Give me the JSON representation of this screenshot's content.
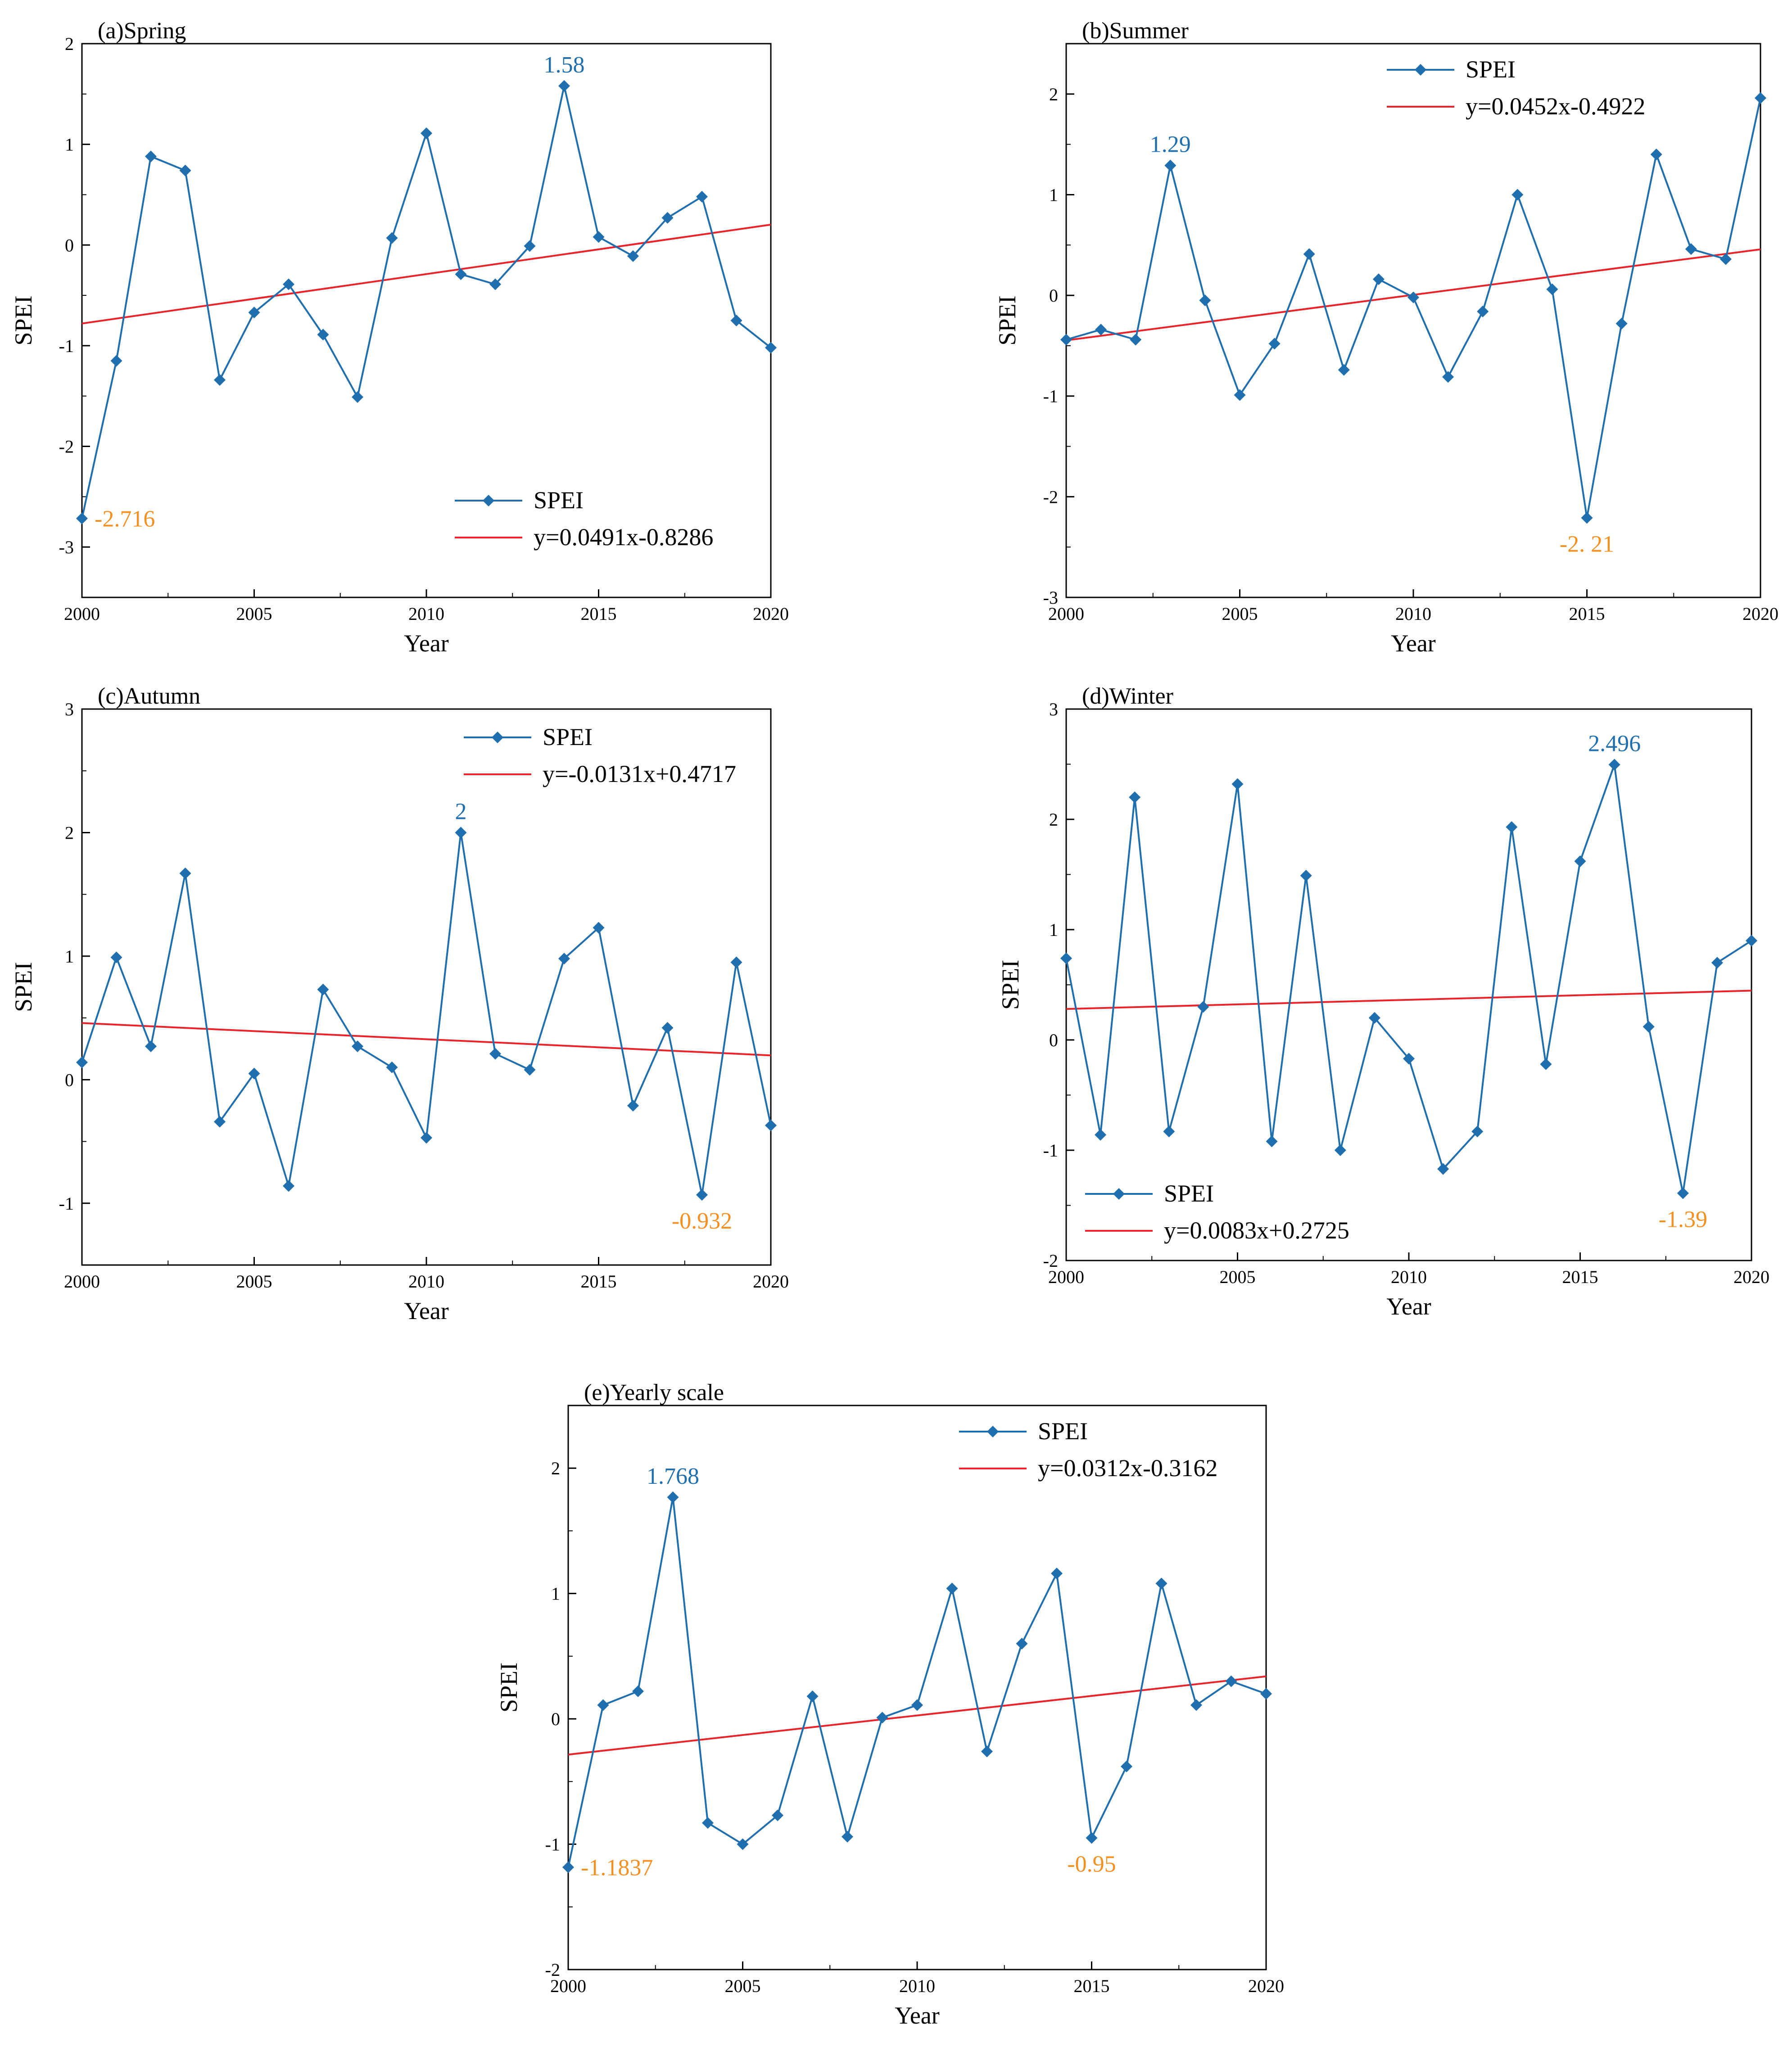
{
  "chart_data": [
    {
      "type": "line",
      "title": "(a)Spring",
      "xlabel": "Year",
      "ylabel": "SPEI",
      "xlim": [
        2000,
        2020
      ],
      "ylim": [
        -3.5,
        2
      ],
      "xticks": [
        2000,
        2005,
        2010,
        2015,
        2020
      ],
      "yticks": [
        -3,
        -2,
        -1,
        0,
        1,
        2
      ],
      "legend_position": "bottom-right",
      "series": [
        {
          "name": "SPEI",
          "color": "#1F6EAD",
          "x": [
            2000,
            2001,
            2002,
            2003,
            2004,
            2005,
            2006,
            2007,
            2008,
            2009,
            2010,
            2011,
            2012,
            2013,
            2014,
            2015,
            2016,
            2017,
            2018,
            2019,
            2020
          ],
          "values": [
            -2.716,
            -1.15,
            0.88,
            0.74,
            -1.34,
            -0.67,
            -0.39,
            -0.89,
            -1.51,
            0.07,
            1.11,
            -0.29,
            -0.39,
            -0.01,
            1.58,
            0.08,
            -0.11,
            0.27,
            0.48,
            -0.75,
            -1.02
          ]
        }
      ],
      "trend": {
        "name": "y=0.0491x-0.8286",
        "color": "#E8242A",
        "slope": 0.0491,
        "intercept": -0.8286
      },
      "annotations": [
        {
          "text": "1.58",
          "x": 2014,
          "y": 1.58,
          "color": "#1F6EAD",
          "placement": "above"
        },
        {
          "text": "-2.716",
          "x": 2000,
          "y": -2.716,
          "color": "#F39021",
          "placement": "right"
        }
      ]
    },
    {
      "type": "line",
      "title": "(b)Summer",
      "xlabel": "Year",
      "ylabel": "SPEI",
      "xlim": [
        2000,
        2020
      ],
      "ylim": [
        -3,
        2.5
      ],
      "xticks": [
        2000,
        2005,
        2010,
        2015,
        2020
      ],
      "yticks": [
        -3,
        -2,
        -1,
        0,
        1,
        2
      ],
      "legend_position": "top-center",
      "series": [
        {
          "name": "SPEI",
          "color": "#1F6EAD",
          "x": [
            2000,
            2001,
            2002,
            2003,
            2004,
            2005,
            2006,
            2007,
            2008,
            2009,
            2010,
            2011,
            2012,
            2013,
            2014,
            2015,
            2016,
            2017,
            2018,
            2019,
            2020
          ],
          "values": [
            -0.44,
            -0.34,
            -0.44,
            1.29,
            -0.05,
            -0.99,
            -0.48,
            0.41,
            -0.74,
            0.16,
            -0.02,
            -0.81,
            -0.16,
            1.0,
            0.06,
            -2.21,
            -0.28,
            1.4,
            0.46,
            0.36,
            1.96
          ]
        }
      ],
      "trend": {
        "name": "y=0.0452x-0.4922",
        "color": "#E8242A",
        "slope": 0.0452,
        "intercept": -0.4922
      },
      "annotations": [
        {
          "text": "1.29",
          "x": 2003,
          "y": 1.29,
          "color": "#1F6EAD",
          "placement": "above"
        },
        {
          "text": "-2. 21",
          "x": 2015,
          "y": -2.21,
          "color": "#F39021",
          "placement": "below"
        }
      ]
    },
    {
      "type": "line",
      "title": "(c)Autumn",
      "xlabel": "Year",
      "ylabel": "SPEI",
      "xlim": [
        2000,
        2020
      ],
      "ylim": [
        -1.5,
        3
      ],
      "xticks": [
        2000,
        2005,
        2010,
        2015,
        2020
      ],
      "yticks": [
        -1,
        0,
        1,
        2,
        3
      ],
      "legend_position": "top-right",
      "series": [
        {
          "name": "SPEI",
          "color": "#1F6EAD",
          "x": [
            2000,
            2001,
            2002,
            2003,
            2004,
            2005,
            2006,
            2007,
            2008,
            2009,
            2010,
            2011,
            2012,
            2013,
            2014,
            2015,
            2016,
            2017,
            2018,
            2019,
            2020
          ],
          "values": [
            0.14,
            0.99,
            0.27,
            1.67,
            -0.34,
            0.05,
            -0.86,
            0.73,
            0.27,
            0.1,
            -0.47,
            2.0,
            0.21,
            0.08,
            0.98,
            1.23,
            -0.21,
            0.42,
            -0.932,
            0.95,
            -0.37
          ]
        }
      ],
      "trend": {
        "name": "y=-0.0131x+0.4717",
        "color": "#E8242A",
        "slope": -0.0131,
        "intercept": 0.4717
      },
      "annotations": [
        {
          "text": "2",
          "x": 2011,
          "y": 2.0,
          "color": "#1F6EAD",
          "placement": "above"
        },
        {
          "text": "-0.932",
          "x": 2018,
          "y": -0.932,
          "color": "#F39021",
          "placement": "below"
        }
      ]
    },
    {
      "type": "line",
      "title": "(d)Winter",
      "xlabel": "Year",
      "ylabel": "SPEI",
      "xlim": [
        2000,
        2020
      ],
      "ylim": [
        -2,
        3
      ],
      "xticks": [
        2000,
        2005,
        2010,
        2015,
        2020
      ],
      "yticks": [
        -2,
        -1,
        0,
        1,
        2,
        3
      ],
      "legend_position": "bottom-left",
      "series": [
        {
          "name": "SPEI",
          "color": "#1F6EAD",
          "x": [
            2000,
            2001,
            2002,
            2003,
            2004,
            2005,
            2006,
            2007,
            2008,
            2009,
            2010,
            2011,
            2012,
            2013,
            2014,
            2015,
            2016,
            2017,
            2018,
            2019,
            2020
          ],
          "values": [
            0.74,
            -0.86,
            2.2,
            -0.83,
            0.3,
            2.32,
            -0.92,
            1.49,
            -1.0,
            0.2,
            -0.17,
            -1.17,
            -0.83,
            1.93,
            -0.22,
            1.62,
            2.496,
            0.12,
            -1.39,
            0.7,
            0.9
          ]
        }
      ],
      "trend": {
        "name": "y=0.0083x+0.2725",
        "color": "#E8242A",
        "slope": 0.0083,
        "intercept": 0.2725
      },
      "annotations": [
        {
          "text": "2.496",
          "x": 2016,
          "y": 2.496,
          "color": "#1F6EAD",
          "placement": "above"
        },
        {
          "text": "-1.39",
          "x": 2018,
          "y": -1.39,
          "color": "#F39021",
          "placement": "below"
        }
      ]
    },
    {
      "type": "line",
      "title": "(e)Yearly scale",
      "xlabel": "Year",
      "ylabel": "SPEI",
      "xlim": [
        2000,
        2020
      ],
      "ylim": [
        -2,
        2.5
      ],
      "xticks": [
        2000,
        2005,
        2010,
        2015,
        2020
      ],
      "yticks": [
        -2,
        -1,
        0,
        1,
        2
      ],
      "legend_position": "top-center",
      "series": [
        {
          "name": "SPEI",
          "color": "#1F6EAD",
          "x": [
            2000,
            2001,
            2002,
            2003,
            2004,
            2005,
            2006,
            2007,
            2008,
            2009,
            2010,
            2011,
            2012,
            2013,
            2014,
            2015,
            2016,
            2017,
            2018,
            2019,
            2020
          ],
          "values": [
            -1.1837,
            0.11,
            0.22,
            1.768,
            -0.83,
            -1.0,
            -0.77,
            0.18,
            -0.94,
            0.01,
            0.11,
            1.04,
            -0.26,
            0.6,
            1.16,
            -0.95,
            -0.38,
            1.08,
            0.11,
            0.3,
            0.2
          ]
        }
      ],
      "trend": {
        "name": "y=0.0312x-0.3162",
        "color": "#E8242A",
        "slope": 0.0312,
        "intercept": -0.3162
      },
      "annotations": [
        {
          "text": "1.768",
          "x": 2003,
          "y": 1.768,
          "color": "#1F6EAD",
          "placement": "above"
        },
        {
          "text": "-1.1837",
          "x": 2000,
          "y": -1.1837,
          "color": "#F39021",
          "placement": "right"
        },
        {
          "text": "-0.95",
          "x": 2015,
          "y": -0.95,
          "color": "#F39021",
          "placement": "below"
        }
      ]
    }
  ]
}
